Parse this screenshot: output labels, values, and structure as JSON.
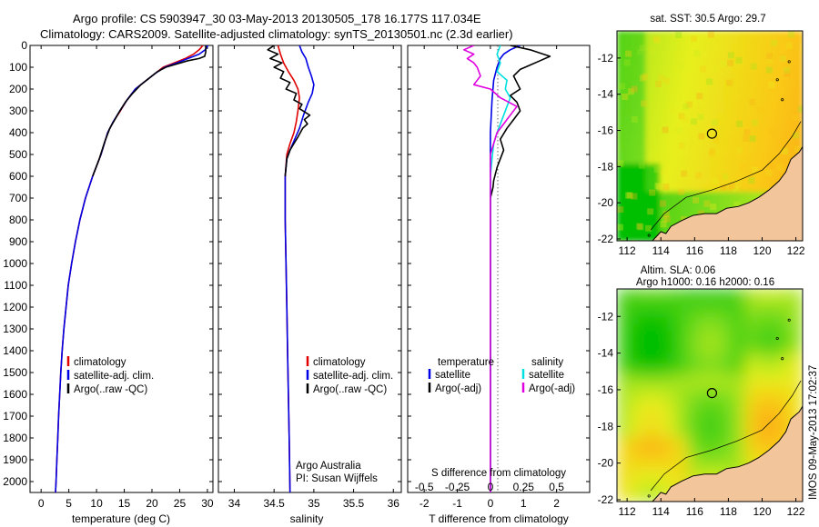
{
  "figure": {
    "title_line1": "Argo profile: CS 5903947_30 03-May-2013 20130505_178 16.177S 117.034E",
    "title_line2": "Climatology: CARS2009. Satellite-adjusted climatology: synTS_20130501.nc (2.3d earlier)",
    "imos_stamp": "IMOS 09-May-2013 17:02:37"
  },
  "colors": {
    "clim": "#e00000",
    "sat": "#0000e6",
    "argo": "#000000",
    "sal_sat": "#00e0e0",
    "sal_argo": "#e000e0"
  },
  "chart_data": [
    {
      "id": "temperature",
      "type": "line",
      "xlabel": "temperature (deg C)",
      "ylabel": "",
      "xlim": [
        -2,
        31
      ],
      "ylim": [
        2050,
        0
      ],
      "xticks": [
        0,
        5,
        10,
        15,
        20,
        25,
        30
      ],
      "yticks": [
        0,
        100,
        200,
        300,
        400,
        500,
        600,
        700,
        800,
        900,
        1000,
        1100,
        1200,
        1300,
        1400,
        1500,
        1600,
        1700,
        1800,
        1900,
        2000
      ],
      "legend": [
        "climatology",
        "satellite-adj. clim.",
        "Argo(..raw -QC)"
      ],
      "series": [
        {
          "name": "climatology",
          "color": "clim",
          "points": [
            [
              29.2,
              0
            ],
            [
              28.5,
              20
            ],
            [
              27.5,
              40
            ],
            [
              26,
              60
            ],
            [
              24,
              80
            ],
            [
              22,
              100
            ],
            [
              20.5,
              130
            ],
            [
              19,
              160
            ],
            [
              17,
              200
            ],
            [
              15.5,
              250
            ],
            [
              14.3,
              300
            ],
            [
              13,
              350
            ],
            [
              12,
              400
            ],
            [
              10.8,
              500
            ],
            [
              9.3,
              600
            ],
            [
              8,
              700
            ],
            [
              7,
              800
            ],
            [
              6.2,
              900
            ],
            [
              5.5,
              1000
            ],
            [
              4.9,
              1100
            ],
            [
              4.5,
              1200
            ],
            [
              4.1,
              1300
            ],
            [
              3.8,
              1400
            ],
            [
              3.55,
              1500
            ],
            [
              3.35,
              1600
            ],
            [
              3.15,
              1700
            ],
            [
              3,
              1800
            ],
            [
              2.85,
              1900
            ],
            [
              2.7,
              2000
            ],
            [
              2.6,
              2050
            ]
          ]
        },
        {
          "name": "satellite-adj. clim.",
          "color": "sat",
          "points": [
            [
              30.1,
              0
            ],
            [
              29.6,
              20
            ],
            [
              28.5,
              40
            ],
            [
              26.5,
              60
            ],
            [
              24.5,
              80
            ],
            [
              22.3,
              100
            ],
            [
              20.5,
              130
            ],
            [
              19,
              160
            ],
            [
              17,
              200
            ],
            [
              15.5,
              250
            ],
            [
              14.2,
              300
            ],
            [
              13,
              350
            ],
            [
              12,
              400
            ],
            [
              10.8,
              500
            ],
            [
              9.3,
              600
            ],
            [
              8,
              700
            ],
            [
              7,
              800
            ],
            [
              6.2,
              900
            ],
            [
              5.5,
              1000
            ],
            [
              4.9,
              1100
            ],
            [
              4.5,
              1200
            ],
            [
              4.1,
              1300
            ],
            [
              3.8,
              1400
            ],
            [
              3.55,
              1500
            ],
            [
              3.35,
              1600
            ],
            [
              3.15,
              1700
            ],
            [
              3,
              1800
            ],
            [
              2.85,
              1900
            ],
            [
              2.7,
              2000
            ],
            [
              2.6,
              2050
            ]
          ]
        },
        {
          "name": "Argo(..raw -QC)",
          "color": "argo",
          "points": [
            [
              29.7,
              0
            ],
            [
              29.7,
              30
            ],
            [
              29.5,
              50
            ],
            [
              28.5,
              60
            ],
            [
              26.5,
              70
            ],
            [
              24.5,
              85
            ],
            [
              22.5,
              100
            ],
            [
              21,
              120
            ],
            [
              19.5,
              150
            ],
            [
              18,
              180
            ],
            [
              16.5,
              220
            ],
            [
              15.2,
              260
            ],
            [
              14.2,
              300
            ],
            [
              13.3,
              340
            ],
            [
              12.4,
              380
            ],
            [
              11.5,
              440
            ],
            [
              10.5,
              520
            ],
            [
              9.3,
              600
            ]
          ]
        }
      ]
    },
    {
      "id": "salinity",
      "type": "line",
      "xlabel": "salinity",
      "ylabel": "",
      "xlim": [
        33.8,
        36.1
      ],
      "ylim": [
        2050,
        0
      ],
      "xticks": [
        34,
        34.5,
        35,
        35.5,
        36
      ],
      "legend": [
        "climatology",
        "satellite-adj. clim.",
        "Argo(..raw -QC)"
      ],
      "annotations": [
        "Argo Australia",
        "PI: Susan Wijffels"
      ],
      "series": [
        {
          "name": "climatology",
          "color": "clim",
          "points": [
            [
              34.55,
              0
            ],
            [
              34.58,
              40
            ],
            [
              34.62,
              80
            ],
            [
              34.68,
              120
            ],
            [
              34.75,
              160
            ],
            [
              34.8,
              200
            ],
            [
              34.82,
              240
            ],
            [
              34.8,
              300
            ],
            [
              34.78,
              350
            ],
            [
              34.75,
              400
            ],
            [
              34.7,
              450
            ],
            [
              34.66,
              500
            ],
            [
              34.64,
              600
            ],
            [
              34.64,
              800
            ],
            [
              34.65,
              1000
            ],
            [
              34.66,
              1200
            ],
            [
              34.67,
              1400
            ],
            [
              34.68,
              1600
            ],
            [
              34.69,
              1800
            ],
            [
              34.7,
              2050
            ]
          ]
        },
        {
          "name": "satellite-adj. clim.",
          "color": "sat",
          "points": [
            [
              34.82,
              0
            ],
            [
              34.85,
              30
            ],
            [
              34.9,
              60
            ],
            [
              34.93,
              100
            ],
            [
              34.97,
              140
            ],
            [
              35,
              180
            ],
            [
              34.98,
              220
            ],
            [
              34.93,
              260
            ],
            [
              34.87,
              320
            ],
            [
              34.82,
              380
            ],
            [
              34.76,
              430
            ],
            [
              34.7,
              480
            ],
            [
              34.66,
              520
            ],
            [
              34.64,
              600
            ],
            [
              34.64,
              800
            ],
            [
              34.65,
              1000
            ],
            [
              34.66,
              1200
            ],
            [
              34.67,
              1400
            ],
            [
              34.68,
              1600
            ],
            [
              34.69,
              1800
            ],
            [
              34.7,
              2050
            ]
          ]
        },
        {
          "name": "Argo(..raw -QC)",
          "color": "argo",
          "points": [
            [
              34.5,
              0
            ],
            [
              34.42,
              20
            ],
            [
              34.55,
              40
            ],
            [
              34.45,
              60
            ],
            [
              34.6,
              80
            ],
            [
              34.5,
              100
            ],
            [
              34.62,
              120
            ],
            [
              34.58,
              150
            ],
            [
              34.7,
              170
            ],
            [
              34.65,
              200
            ],
            [
              34.78,
              220
            ],
            [
              34.75,
              250
            ],
            [
              34.85,
              270
            ],
            [
              34.82,
              290
            ],
            [
              34.95,
              320
            ],
            [
              34.88,
              340
            ],
            [
              34.92,
              360
            ],
            [
              34.86,
              380
            ],
            [
              34.8,
              420
            ],
            [
              34.75,
              450
            ],
            [
              34.7,
              480
            ],
            [
              34.66,
              520
            ],
            [
              34.64,
              600
            ]
          ]
        }
      ]
    },
    {
      "id": "difference",
      "type": "line",
      "xlabel": "T difference from climatology",
      "xlabel_top": "S difference from climatology",
      "xlim": [
        -2.5,
        3
      ],
      "ylim": [
        2050,
        0
      ],
      "xticks": [
        -2,
        -1,
        0,
        1,
        2
      ],
      "xticks_top": [
        "-0.5",
        "-0.25",
        "0",
        "0.25",
        "0.5"
      ],
      "xticks_top_pos": [
        -2,
        -1,
        0,
        1,
        2
      ],
      "legend_headers": [
        "temperature",
        "salinity"
      ],
      "legend": [
        "satellite",
        "Argo(-adj)",
        "satellite",
        "Argo(-adj)"
      ],
      "series": [
        {
          "name": "T satellite",
          "color": "sat",
          "points": [
            [
              0.9,
              0
            ],
            [
              0.6,
              20
            ],
            [
              0.4,
              40
            ],
            [
              0.3,
              60
            ],
            [
              0.2,
              100
            ],
            [
              0.1,
              160
            ],
            [
              0.05,
              250
            ],
            [
              0,
              400
            ],
            [
              0,
              2050
            ]
          ]
        },
        {
          "name": "T Argo(-adj)",
          "color": "argo",
          "points": [
            [
              0.6,
              0
            ],
            [
              1.2,
              20
            ],
            [
              1.8,
              50
            ],
            [
              1.5,
              70
            ],
            [
              1.2,
              90
            ],
            [
              0.9,
              110
            ],
            [
              0.7,
              140
            ],
            [
              0.8,
              170
            ],
            [
              0.9,
              200
            ],
            [
              0.6,
              230
            ],
            [
              0.8,
              260
            ],
            [
              0.9,
              300
            ],
            [
              0.7,
              340
            ],
            [
              0.5,
              380
            ],
            [
              0.3,
              430
            ],
            [
              0.4,
              480
            ],
            [
              0.3,
              520
            ],
            [
              0.2,
              560
            ],
            [
              0.1,
              620
            ],
            [
              0.08,
              650
            ],
            [
              0,
              700
            ],
            [
              0,
              2050
            ]
          ]
        },
        {
          "name": "S satellite",
          "color": "sal_sat",
          "points": [
            [
              0.3,
              0
            ],
            [
              0.2,
              40
            ],
            [
              0.3,
              80
            ],
            [
              0.2,
              120
            ],
            [
              0.5,
              160
            ],
            [
              0.45,
              200
            ],
            [
              0.6,
              240
            ],
            [
              0.5,
              280
            ],
            [
              0.4,
              320
            ],
            [
              0.3,
              360
            ],
            [
              0.2,
              400
            ],
            [
              0.1,
              450
            ],
            [
              0.05,
              520
            ],
            [
              0,
              600
            ],
            [
              0,
              2050
            ]
          ]
        },
        {
          "name": "S Argo(-adj)",
          "color": "sal_argo",
          "points": [
            [
              -0.5,
              0
            ],
            [
              -0.8,
              20
            ],
            [
              -0.5,
              40
            ],
            [
              -0.7,
              60
            ],
            [
              -0.5,
              80
            ],
            [
              -0.4,
              100
            ],
            [
              -0.3,
              140
            ],
            [
              -0.5,
              180
            ],
            [
              0.0,
              200
            ],
            [
              0.3,
              240
            ],
            [
              0.8,
              280
            ],
            [
              0.6,
              320
            ],
            [
              0.4,
              360
            ],
            [
              0.2,
              400
            ],
            [
              0.1,
              450
            ],
            [
              0,
              500
            ],
            [
              0,
              2050
            ]
          ]
        }
      ]
    },
    {
      "id": "map_sst",
      "type": "heatmap",
      "title": "sat. SST: 30.5  Argo: 29.7",
      "xticks": [
        112,
        114,
        116,
        118,
        120,
        122
      ],
      "yticks": [
        -12,
        -14,
        -16,
        -18,
        -20,
        -22
      ],
      "xlim": [
        111.4,
        122.4
      ],
      "ylim": [
        -22.1,
        -10.5
      ],
      "marker": [
        117.03,
        -16.18
      ]
    },
    {
      "id": "map_sla",
      "type": "heatmap",
      "title": "Altim. SLA: 0.06",
      "subtitle": "Argo h1000: 0.16  h2000: 0.16",
      "xticks": [
        112,
        114,
        116,
        118,
        120,
        122
      ],
      "yticks": [
        -12,
        -14,
        -16,
        -18,
        -20,
        -22
      ],
      "xlim": [
        111.4,
        122.4
      ],
      "ylim": [
        -22.1,
        -10.5
      ],
      "marker": [
        117.03,
        -16.18
      ]
    }
  ]
}
